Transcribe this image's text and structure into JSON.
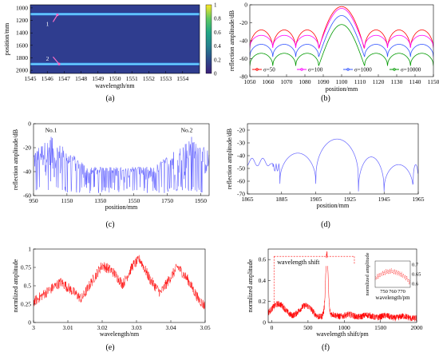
{
  "figure": {
    "panels": [
      "(a)",
      "(b)",
      "(c)",
      "(d)",
      "(e)",
      "(f)"
    ]
  },
  "chart_data": [
    {
      "id": "a",
      "type": "heatmap",
      "xlabel": "wavelength/nm",
      "ylabel": "position/mm",
      "xlim": [
        1545,
        1555
      ],
      "ylim": [
        950,
        2050
      ],
      "y_reversed": true,
      "xticks": [
        1545,
        1546,
        1547,
        1548,
        1549,
        1550,
        1551,
        1552,
        1553,
        1554
      ],
      "yticks": [
        1000,
        1200,
        1400,
        1600,
        1800,
        2000
      ],
      "colorbar": {
        "min": 0,
        "max": 1,
        "ticks": [
          0,
          0.2,
          0.4,
          0.6,
          0.8,
          1
        ],
        "colors": [
          "#3b1f7a",
          "#2d4a8a",
          "#26818e",
          "#21a685",
          "#5ec962",
          "#fde725"
        ]
      },
      "background_color": "#2f3d8f",
      "bands": [
        {
          "position": 1100,
          "value": 0.45
        },
        {
          "position": 1900,
          "value": 0.45
        }
      ],
      "annotations": [
        {
          "text": "1",
          "x": 1546.2,
          "y": 1250,
          "arrow_to": [
            1546.6,
            1110
          ],
          "color": "#ff6ec7"
        },
        {
          "text": "2",
          "x": 1546.2,
          "y": 1810,
          "arrow_to": [
            1546.7,
            1900
          ],
          "color": "#ff6ec7"
        }
      ]
    },
    {
      "id": "b",
      "type": "line",
      "xlabel": "position/mm",
      "ylabel": "reflection amplitude/dB",
      "xlim": [
        1050,
        1150
      ],
      "ylim": [
        -80,
        0
      ],
      "xticks": [
        1050,
        1060,
        1070,
        1080,
        1090,
        1100,
        1110,
        1120,
        1130,
        1140,
        1150
      ],
      "yticks": [
        -80,
        -60,
        -40,
        -20,
        0
      ],
      "lobe_nulls": [
        1050,
        1062.5,
        1075,
        1087.5,
        1112.5,
        1125,
        1137.5,
        1150
      ],
      "series": [
        {
          "name": "σ=50",
          "color": "#ff0000",
          "peak": -2,
          "floor": -50
        },
        {
          "name": "σ=100",
          "color": "#ff00ff",
          "peak": -4,
          "floor": -48
        },
        {
          "name": "σ=1000",
          "color": "#3355ff",
          "peak": -12,
          "floor": -58
        },
        {
          "name": "σ=10000",
          "color": "#009a00",
          "peak": -22,
          "floor": -68
        }
      ],
      "legend": "bottom",
      "legend_entries": [
        "σ=50",
        "σ=100",
        "σ=1000",
        "σ=10000"
      ]
    },
    {
      "id": "c",
      "type": "line",
      "xlabel": "position/mm",
      "ylabel": "reflection amplitude/dB",
      "xlim": [
        950,
        2000
      ],
      "ylim": [
        -60,
        0
      ],
      "xticks": [
        950,
        1150,
        1350,
        1550,
        1750,
        1950
      ],
      "yticks": [
        -60,
        -40,
        -20,
        0
      ],
      "color": "#5a5aff",
      "peaks": [
        {
          "x": 1055,
          "y": -11,
          "label": "No.1"
        },
        {
          "x": 1895,
          "y": -11,
          "label": "No.2"
        }
      ],
      "noise_floor": [
        -58,
        -36
      ]
    },
    {
      "id": "d",
      "type": "line",
      "xlabel": "position/mm",
      "ylabel": "reflection amplitude/dB",
      "xlim": [
        1865,
        1965
      ],
      "ylim": [
        -70,
        -15
      ],
      "xticks": [
        1865,
        1885,
        1905,
        1925,
        1945,
        1965
      ],
      "yticks": [
        -70,
        -60,
        -50,
        -40,
        -30,
        -20
      ],
      "color": "#6666ff",
      "main_lobe": {
        "center": 1917,
        "peak": -27,
        "nulls": [
          1905,
          1930
        ]
      },
      "side_nulls": [
        1884,
        1945,
        1962
      ]
    },
    {
      "id": "e",
      "type": "line",
      "xlabel": "wavelength/nm",
      "ylabel": "normlized amplitude",
      "xlim": [
        3,
        3.05
      ],
      "ylim": [
        0,
        1
      ],
      "xticks": [
        3,
        3.01,
        3.02,
        3.03,
        3.04,
        3.05
      ],
      "yticks": [
        0,
        0.25,
        0.5,
        0.75,
        1
      ],
      "color": "#ff0000",
      "envelope": [
        [
          3.0,
          0.28
        ],
        [
          3.004,
          0.42
        ],
        [
          3.008,
          0.55
        ],
        [
          3.011,
          0.44
        ],
        [
          3.014,
          0.32
        ],
        [
          3.017,
          0.56
        ],
        [
          3.02,
          0.78
        ],
        [
          3.023,
          0.7
        ],
        [
          3.026,
          0.52
        ],
        [
          3.029,
          0.78
        ],
        [
          3.031,
          0.86
        ],
        [
          3.034,
          0.58
        ],
        [
          3.037,
          0.4
        ],
        [
          3.04,
          0.62
        ],
        [
          3.042,
          0.76
        ],
        [
          3.045,
          0.58
        ],
        [
          3.048,
          0.32
        ],
        [
          3.05,
          0.22
        ]
      ]
    },
    {
      "id": "f",
      "type": "line",
      "xlabel": "wavelength shift/pm",
      "ylabel": "normlized amplitude",
      "xlim": [
        -50,
        2000
      ],
      "ylim": [
        0,
        0.7
      ],
      "xticks": [
        0,
        500,
        1000,
        1500,
        2000
      ],
      "yticks": [
        0,
        0.2,
        0.4,
        0.6
      ],
      "color": "#ff0000",
      "annotation": "wavelength shift",
      "peak": {
        "x": 760,
        "y": 0.66
      },
      "inset": {
        "xlabel": "wavelength/pm",
        "ylabel": "normlized amplitude",
        "xticks": [
          750,
          760,
          770
        ],
        "yticks": [
          0.6,
          0.65,
          0.7
        ],
        "xlim": [
          740,
          780
        ],
        "ylim": [
          0.58,
          0.72
        ]
      }
    }
  ]
}
